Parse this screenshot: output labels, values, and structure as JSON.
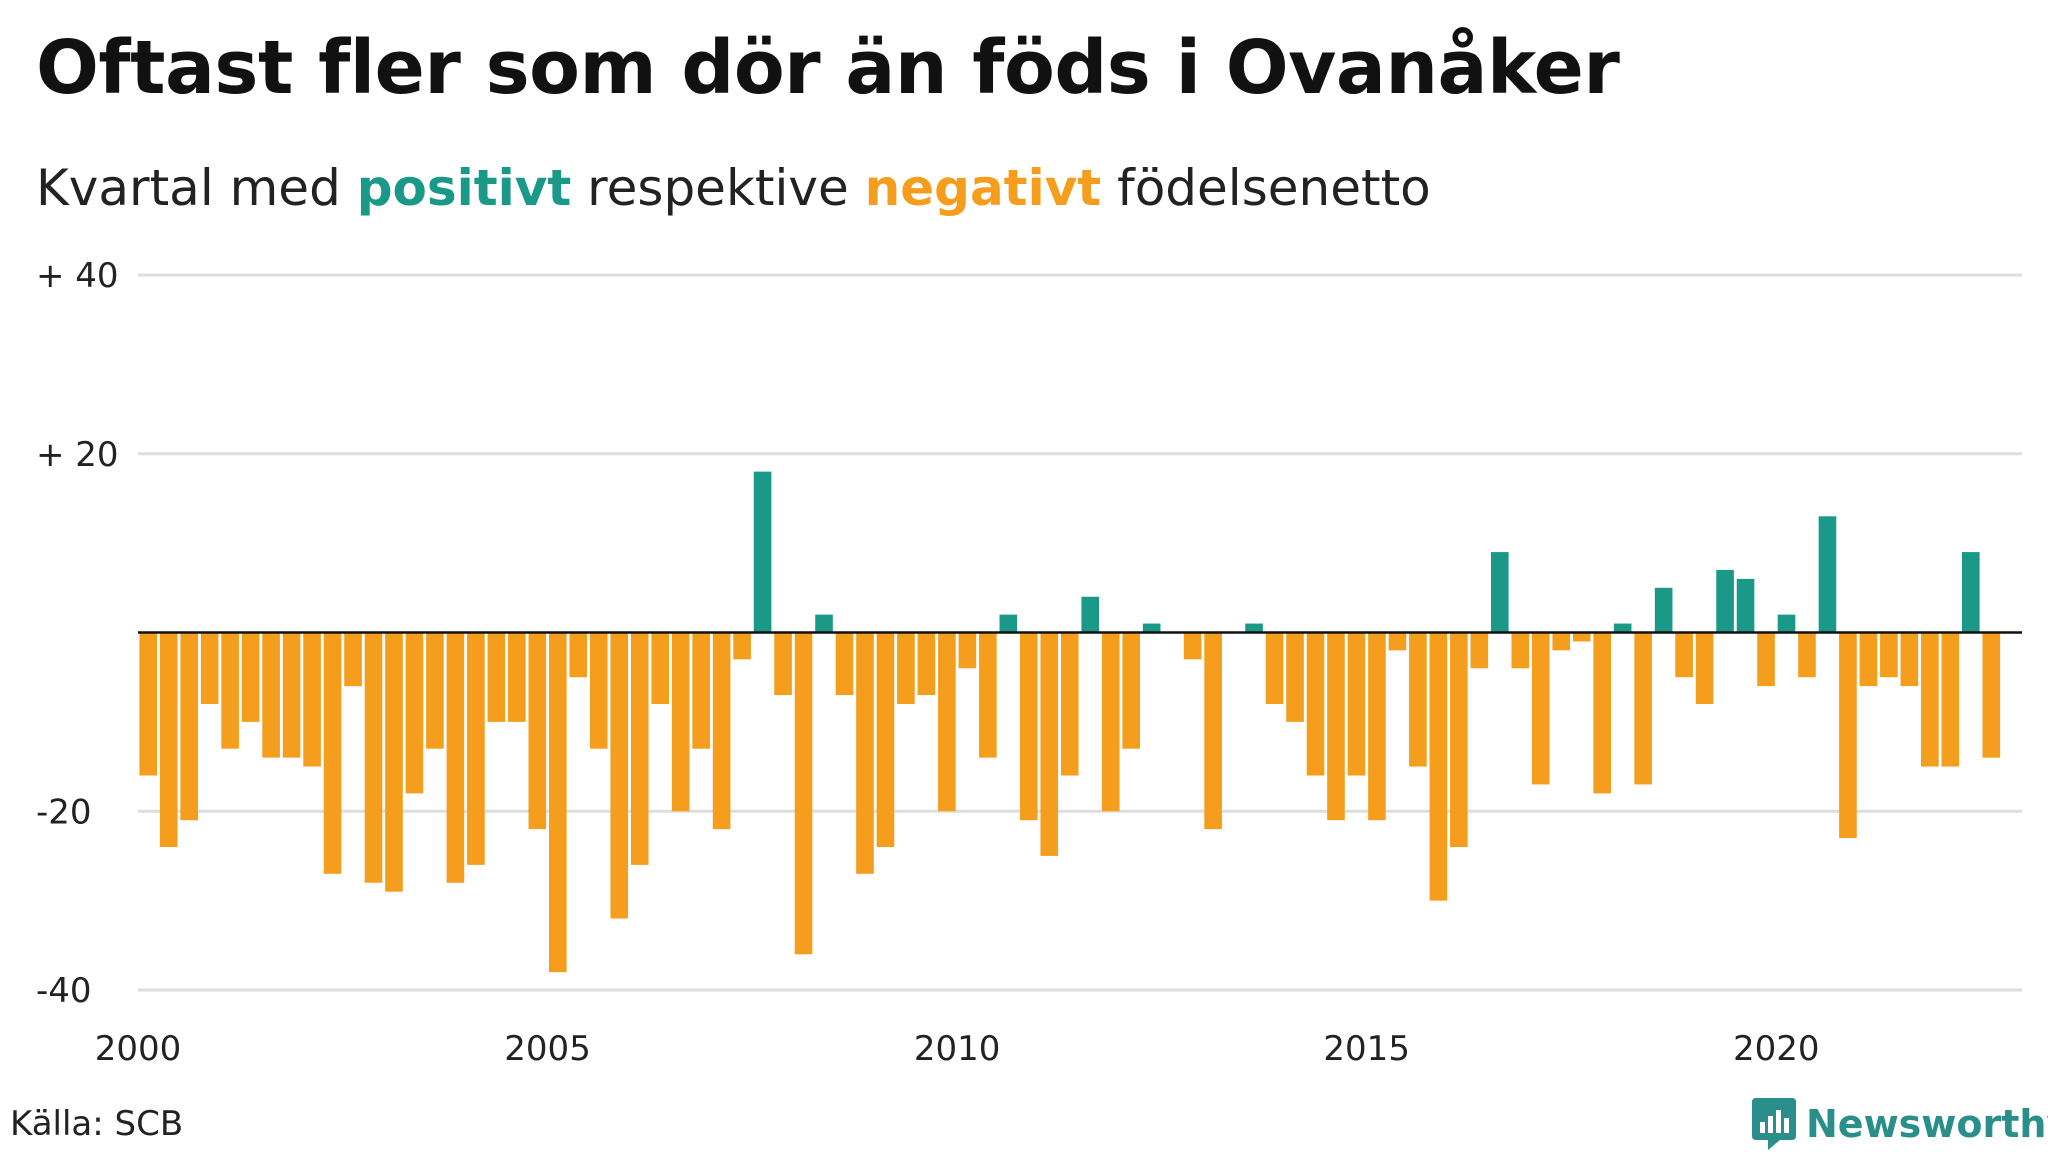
{
  "title": "Oftast fler som dör än föds i Ovanåker",
  "subtitle": {
    "prefix": "Kvartal med ",
    "positive_word": "positivt",
    "middle": " respektive ",
    "negative_word": "negativt",
    "suffix": " födelsenetto"
  },
  "source": "Källa: SCB",
  "brand": "Newsworthy",
  "colors": {
    "positive": "#1a9988",
    "negative": "#f59e1e",
    "grid": "#dddddd",
    "zero_line": "#111111",
    "brand": "#2a8f8a"
  },
  "chart_data": {
    "type": "bar",
    "x_start": 2000,
    "x_step": 0.25,
    "xlim": [
      2000,
      2023
    ],
    "ylim": [
      -40,
      40
    ],
    "y_ticks": [
      {
        "value": 40,
        "label": "+ 40"
      },
      {
        "value": 20,
        "label": "+ 20"
      },
      {
        "value": 0,
        "label": ""
      },
      {
        "value": -20,
        "label": "-20"
      },
      {
        "value": -40,
        "label": "-40"
      }
    ],
    "x_ticks": [
      {
        "value": 2000,
        "label": "2000"
      },
      {
        "value": 2005,
        "label": "2005"
      },
      {
        "value": 2010,
        "label": "2010"
      },
      {
        "value": 2015,
        "label": "2015"
      },
      {
        "value": 2020,
        "label": "2020"
      }
    ],
    "values": [
      -16,
      -24,
      -21,
      -8,
      -13,
      -10,
      -14,
      -14,
      -15,
      -27,
      -6,
      -28,
      -29,
      -18,
      -13,
      -28,
      -26,
      -10,
      -10,
      -22,
      -38,
      -5,
      -13,
      -32,
      -26,
      -8,
      -20,
      -13,
      -22,
      -3,
      18,
      -7,
      -36,
      2,
      -7,
      -27,
      -24,
      -8,
      -7,
      -20,
      -4,
      -14,
      2,
      -21,
      -25,
      -16,
      4,
      -20,
      -13,
      1,
      0,
      -3,
      -22,
      0,
      1,
      -8,
      -10,
      -16,
      -21,
      -16,
      -21,
      -2,
      -15,
      -30,
      -24,
      -4,
      9,
      -4,
      -17,
      -2,
      -1,
      -18,
      1,
      -17,
      5,
      -5,
      -8,
      7,
      6,
      -6,
      2,
      -5,
      13,
      -23,
      -6,
      -5,
      -6,
      -15,
      -15,
      9,
      -14
    ]
  }
}
